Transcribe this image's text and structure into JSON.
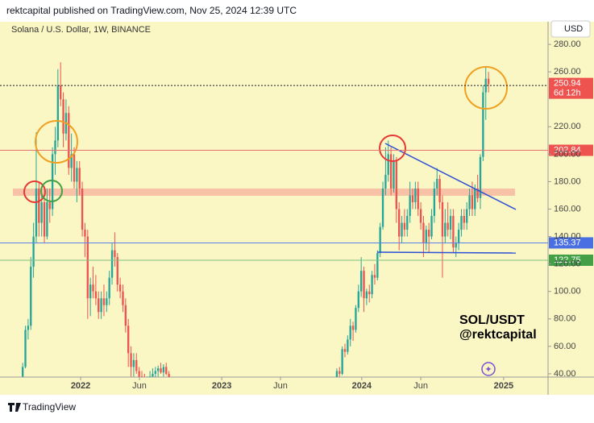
{
  "header": {
    "text": "rektcapital published on TradingView.com, Nov 25, 2024 12:39 UTC"
  },
  "footer": {
    "brand": "TradingView"
  },
  "chart_data": {
    "type": "candlestick",
    "title": "Solana / U.S. Dollar, 1W, BINANCE",
    "currency": "USD",
    "annotation": [
      "SOL/USDT",
      "@rektcapital"
    ],
    "colors": {
      "up": "#26a69a",
      "down": "#ef5350"
    },
    "x": [
      6,
      7,
      8,
      9,
      10,
      11,
      12,
      13,
      14,
      15,
      16,
      17,
      18,
      19,
      20,
      21,
      22,
      23,
      24,
      25,
      26,
      27,
      28,
      29,
      30,
      31,
      32,
      33,
      34,
      35,
      36,
      37,
      38,
      39,
      40,
      41,
      42,
      43,
      44,
      45,
      46,
      47,
      48,
      49,
      50,
      51,
      52,
      53,
      54,
      55,
      56,
      57,
      58,
      59,
      60,
      122,
      123,
      124,
      125,
      126,
      127,
      128,
      129,
      130,
      131,
      132,
      133,
      134,
      135,
      136,
      137,
      138,
      139,
      140,
      141,
      142,
      143,
      144,
      145,
      146,
      147,
      148,
      149,
      150,
      151,
      152,
      153,
      154,
      155,
      156,
      157,
      158,
      159,
      160,
      161,
      162,
      163,
      164,
      165,
      166,
      167,
      168,
      169,
      170,
      171,
      172,
      173,
      174,
      175,
      176,
      177,
      178
    ],
    "open": [
      38,
      45,
      72,
      75,
      118,
      140,
      175,
      150,
      165,
      140,
      165,
      160,
      200,
      210,
      250,
      240,
      215,
      230,
      190,
      200,
      180,
      190,
      175,
      145,
      140,
      95,
      105,
      100,
      95,
      85,
      95,
      90,
      95,
      110,
      130,
      125,
      105,
      100,
      90,
      75,
      55,
      45,
      50,
      42,
      38,
      35,
      32,
      36,
      38,
      40,
      42,
      44,
      41,
      45,
      40,
      32,
      42,
      40,
      58,
      56,
      65,
      75,
      72,
      88,
      100,
      115,
      95,
      100,
      98,
      112,
      110,
      128,
      147,
      175,
      185,
      200,
      175,
      195,
      160,
      140,
      150,
      145,
      155,
      170,
      165,
      175,
      160,
      150,
      135,
      145,
      140,
      155,
      175,
      182,
      165,
      140,
      150,
      145,
      155,
      132,
      135,
      145,
      155,
      150,
      160,
      170,
      160,
      175,
      168,
      198,
      245,
      255
    ],
    "high": [
      48,
      75,
      80,
      125,
      150,
      216,
      180,
      170,
      168,
      175,
      175,
      205,
      220,
      262,
      267,
      245,
      240,
      235,
      215,
      205,
      195,
      195,
      180,
      150,
      145,
      110,
      118,
      112,
      100,
      100,
      105,
      100,
      115,
      135,
      143,
      128,
      110,
      105,
      95,
      80,
      60,
      55,
      55,
      45,
      42,
      40,
      38,
      42,
      44,
      45,
      46,
      48,
      47,
      48,
      42,
      44,
      45,
      60,
      62,
      68,
      80,
      78,
      90,
      105,
      125,
      118,
      102,
      105,
      115,
      120,
      130,
      150,
      180,
      205,
      210,
      205,
      200,
      198,
      165,
      155,
      160,
      160,
      180,
      175,
      180,
      180,
      165,
      155,
      148,
      150,
      160,
      180,
      190,
      185,
      170,
      160,
      165,
      160,
      160,
      140,
      150,
      160,
      160,
      165,
      175,
      180,
      178,
      185,
      200,
      250,
      264,
      260
    ],
    "low": [
      36,
      44,
      65,
      72,
      110,
      135,
      140,
      140,
      135,
      138,
      150,
      155,
      185,
      205,
      235,
      205,
      210,
      185,
      180,
      175,
      165,
      170,
      140,
      125,
      80,
      82,
      95,
      90,
      80,
      80,
      82,
      85,
      90,
      105,
      118,
      100,
      95,
      85,
      70,
      45,
      38,
      38,
      40,
      35,
      30,
      26,
      30,
      33,
      35,
      37,
      38,
      40,
      38,
      39,
      30,
      31,
      38,
      39,
      52,
      54,
      60,
      64,
      70,
      85,
      96,
      85,
      90,
      92,
      95,
      105,
      108,
      125,
      145,
      170,
      180,
      170,
      172,
      150,
      130,
      135,
      140,
      140,
      150,
      160,
      160,
      155,
      145,
      125,
      130,
      128,
      138,
      150,
      170,
      160,
      110,
      135,
      140,
      138,
      128,
      125,
      130,
      140,
      145,
      145,
      155,
      155,
      155,
      165,
      160,
      195,
      225,
      245
    ],
    "close": [
      45,
      72,
      75,
      118,
      140,
      175,
      150,
      165,
      140,
      165,
      160,
      200,
      210,
      250,
      240,
      215,
      230,
      190,
      200,
      180,
      190,
      175,
      145,
      140,
      95,
      105,
      100,
      95,
      85,
      95,
      90,
      95,
      110,
      130,
      125,
      105,
      100,
      90,
      75,
      55,
      45,
      50,
      42,
      38,
      35,
      32,
      36,
      38,
      40,
      42,
      44,
      41,
      45,
      40,
      32,
      42,
      40,
      58,
      56,
      65,
      75,
      72,
      88,
      100,
      115,
      95,
      100,
      98,
      112,
      110,
      128,
      147,
      175,
      185,
      200,
      175,
      195,
      160,
      140,
      150,
      145,
      155,
      170,
      165,
      175,
      160,
      150,
      135,
      145,
      140,
      155,
      175,
      182,
      165,
      140,
      150,
      145,
      155,
      132,
      135,
      145,
      155,
      150,
      160,
      170,
      160,
      175,
      168,
      198,
      245,
      255,
      250.94
    ],
    "price_lines": [
      {
        "value": 250.08,
        "color": "#131722",
        "dash": "2 2",
        "label_bg": "#000000"
      },
      {
        "value": 202.84,
        "color": "#e57373",
        "dash": "",
        "label_bg": "#ef5350"
      },
      {
        "value": 135.37,
        "color": "#5a7fe6",
        "dash": "",
        "label_bg": "#4a6fe3"
      },
      {
        "value": 122.75,
        "color": "#80c080",
        "dash": "",
        "label_bg": "#43a047"
      }
    ],
    "last": {
      "value": 250.94,
      "countdown": "6d 12h",
      "color": "#ef5350"
    },
    "xlim": [
      0,
      200
    ],
    "ylim": [
      37.6,
      296.5
    ],
    "xticks": [
      {
        "value": 27.4,
        "label": "2022"
      },
      {
        "value": 49.1,
        "label": "Jun"
      },
      {
        "value": 79.5,
        "label": "2023"
      },
      {
        "value": 101.2,
        "label": "Jun"
      },
      {
        "value": 131.2,
        "label": "2024"
      },
      {
        "value": 153,
        "label": "Jun"
      },
      {
        "value": 183.6,
        "label": "2025"
      }
    ],
    "yticks": [
      {
        "value": 40,
        "label": "40.00"
      },
      {
        "value": 60,
        "label": "60.00"
      },
      {
        "value": 80,
        "label": "80.00"
      },
      {
        "value": 100,
        "label": "100.00"
      },
      {
        "value": 120,
        "label": "120.00"
      },
      {
        "value": 140,
        "label": "140.00"
      },
      {
        "value": 160,
        "label": "160.00"
      },
      {
        "value": 180,
        "label": "180.00"
      },
      {
        "value": 200,
        "label": "200.00"
      },
      {
        "value": 220,
        "label": "220.00"
      },
      {
        "value": 260,
        "label": "260.00"
      },
      {
        "value": 280,
        "label": "280.00"
      }
    ]
  }
}
